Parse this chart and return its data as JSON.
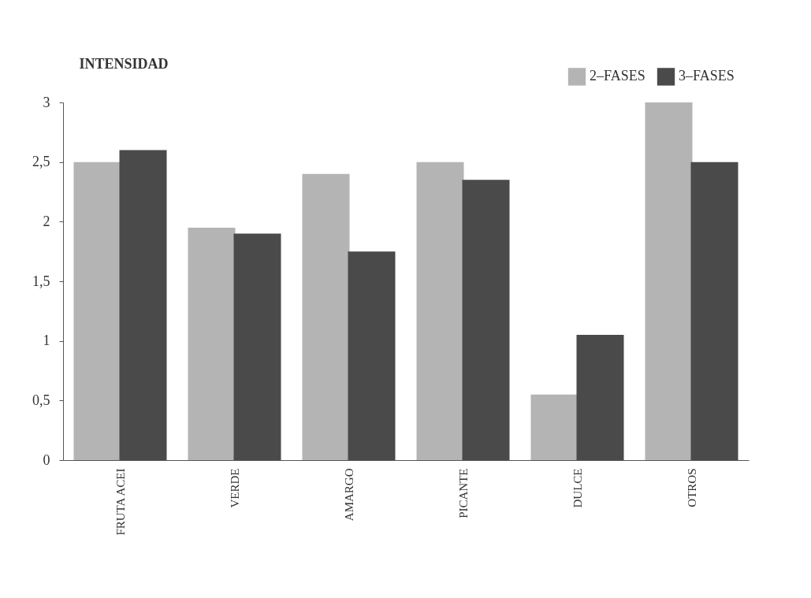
{
  "chart_data": {
    "type": "bar",
    "ylabel": "INTENSIDAD",
    "categories": [
      "FRUTA ACEI",
      "VERDE",
      "AMARGO",
      "PICANTE",
      "DULCE",
      "OTROS"
    ],
    "series": [
      {
        "name": "2–FASES",
        "color": "#b4b4b4",
        "values": [
          2.5,
          1.95,
          2.4,
          2.5,
          0.55,
          3.0
        ]
      },
      {
        "name": "3–FASES",
        "color": "#4a4a4a",
        "values": [
          2.6,
          1.9,
          1.75,
          2.35,
          1.05,
          2.5
        ]
      }
    ],
    "ylim": [
      0,
      3
    ],
    "yticks": [
      0,
      {
        "value": 0.5,
        "label": "0,5"
      },
      1,
      {
        "value": 1.5,
        "label": "1,5"
      },
      2,
      {
        "value": 2.5,
        "label": "2,5"
      },
      3
    ],
    "grid": false,
    "legend": "top right"
  }
}
